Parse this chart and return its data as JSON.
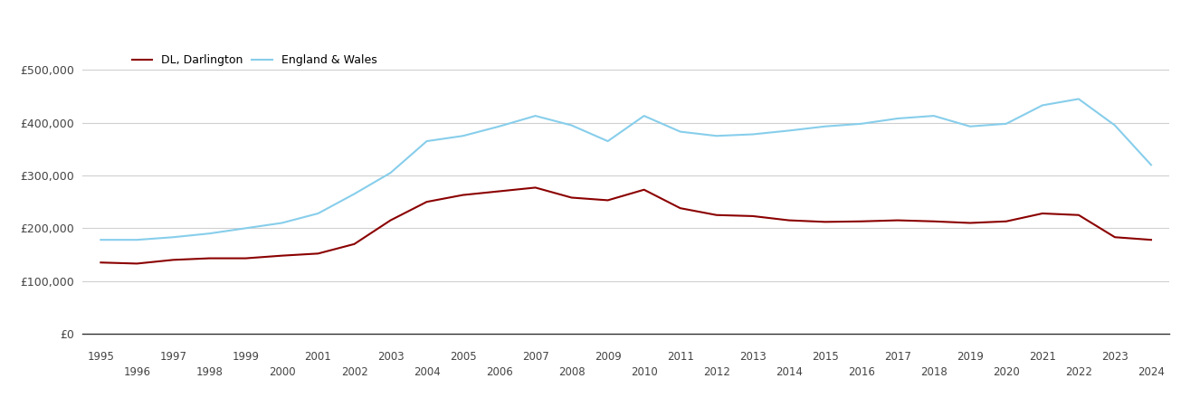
{
  "dl_darlington_color": "#8B0000",
  "england_wales_color": "#87CEEB",
  "legend_labels": [
    "DL, Darlington",
    "England & Wales"
  ],
  "years_odd": [
    1995,
    1997,
    1999,
    2001,
    2003,
    2005,
    2007,
    2009,
    2011,
    2013,
    2015,
    2017,
    2019,
    2021,
    2023
  ],
  "years_even": [
    1996,
    1998,
    2000,
    2002,
    2004,
    2006,
    2008,
    2010,
    2012,
    2014,
    2016,
    2018,
    2020,
    2022,
    2024
  ],
  "dl_data": {
    "1995": 135000,
    "1996": 133000,
    "1997": 140000,
    "1998": 143000,
    "1999": 143000,
    "2000": 148000,
    "2001": 152000,
    "2002": 170000,
    "2003": 215000,
    "2004": 250000,
    "2005": 263000,
    "2006": 270000,
    "2007": 277000,
    "2008": 258000,
    "2009": 253000,
    "2010": 273000,
    "2011": 238000,
    "2012": 225000,
    "2013": 223000,
    "2014": 215000,
    "2015": 212000,
    "2016": 213000,
    "2017": 215000,
    "2018": 213000,
    "2019": 210000,
    "2020": 213000,
    "2021": 228000,
    "2022": 225000,
    "2023": 183000,
    "2024": 178000
  },
  "ew_data": {
    "1995": 178000,
    "1996": 178000,
    "1997": 183000,
    "1998": 190000,
    "1999": 200000,
    "2000": 210000,
    "2001": 228000,
    "2002": 265000,
    "2003": 305000,
    "2004": 365000,
    "2005": 375000,
    "2006": 393000,
    "2007": 413000,
    "2008": 395000,
    "2009": 365000,
    "2010": 413000,
    "2011": 383000,
    "2012": 375000,
    "2013": 378000,
    "2014": 385000,
    "2015": 393000,
    "2016": 398000,
    "2017": 408000,
    "2018": 413000,
    "2019": 393000,
    "2020": 398000,
    "2021": 433000,
    "2022": 445000,
    "2023": 395000,
    "2024": 320000
  },
  "ylim": [
    0,
    540000
  ],
  "yticks": [
    0,
    100000,
    200000,
    300000,
    400000,
    500000
  ],
  "ytick_labels": [
    "£0",
    "£100,000",
    "£200,000",
    "£300,000",
    "£400,000",
    "£500,000"
  ],
  "background_color": "#ffffff",
  "grid_color": "#d0d0d0",
  "line_width": 1.5
}
